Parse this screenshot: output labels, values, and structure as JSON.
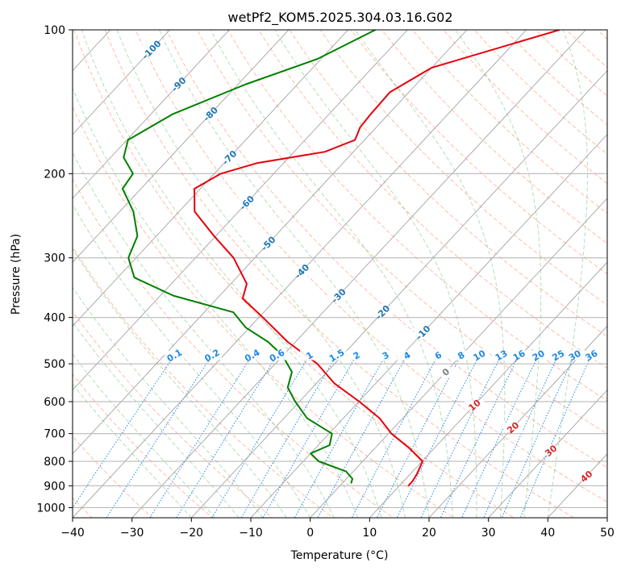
{
  "chart_data": {
    "type": "line",
    "subtype": "skew-t log-p",
    "title": "wetPf2_KOM5.2025.304.03.16.G02",
    "xlabel": "Temperature (°C)",
    "ylabel": "Pressure (hPa)",
    "xlim": [
      -40,
      50
    ],
    "ylim": [
      1050,
      100
    ],
    "y_scale": "log",
    "x_ticks": [
      -40,
      -30,
      -20,
      -10,
      0,
      10,
      20,
      30,
      40,
      50
    ],
    "x_tick_labels": [
      "−40",
      "−30",
      "−20",
      "−10",
      "0",
      "10",
      "20",
      "30",
      "40",
      "50"
    ],
    "y_ticks": [
      100,
      200,
      300,
      400,
      500,
      600,
      700,
      800,
      900,
      1000
    ],
    "y_tick_labels": [
      "100",
      "200",
      "300",
      "400",
      "500",
      "600",
      "700",
      "800",
      "900",
      "1000"
    ],
    "grid": true,
    "series": [
      {
        "role": "temperature",
        "color": "#e8000b",
        "points": [
          {
            "p": 100,
            "t": -34.4
          },
          {
            "p": 120,
            "t": -50.0
          },
          {
            "p": 135,
            "t": -53.2
          },
          {
            "p": 150,
            "t": -53.0
          },
          {
            "p": 160,
            "t": -52.7
          },
          {
            "p": 170,
            "t": -51.6
          },
          {
            "p": 180,
            "t": -54.8
          },
          {
            "p": 190,
            "t": -64.4
          },
          {
            "p": 200,
            "t": -68.9
          },
          {
            "p": 215,
            "t": -71.0
          },
          {
            "p": 240,
            "t": -67.4
          },
          {
            "p": 270,
            "t": -60.3
          },
          {
            "p": 300,
            "t": -53.6
          },
          {
            "p": 340,
            "t": -47.3
          },
          {
            "p": 365,
            "t": -45.7
          },
          {
            "p": 400,
            "t": -39.3
          },
          {
            "p": 450,
            "t": -31.3
          },
          {
            "p": 500,
            "t": -22.9
          },
          {
            "p": 550,
            "t": -16.9
          },
          {
            "p": 600,
            "t": -9.9
          },
          {
            "p": 650,
            "t": -3.9
          },
          {
            "p": 700,
            "t": 0.5
          },
          {
            "p": 750,
            "t": 5.7
          },
          {
            "p": 800,
            "t": 10.1
          },
          {
            "p": 850,
            "t": 11.1
          },
          {
            "p": 880,
            "t": 11.5
          },
          {
            "p": 900,
            "t": 11.5
          }
        ]
      },
      {
        "role": "dewpoint",
        "color": "#008000",
        "points": [
          {
            "p": 100,
            "t": -65.4
          },
          {
            "p": 115,
            "t": -70.6
          },
          {
            "p": 130,
            "t": -78.7
          },
          {
            "p": 150,
            "t": -86.3
          },
          {
            "p": 170,
            "t": -89.8
          },
          {
            "p": 185,
            "t": -87.8
          },
          {
            "p": 200,
            "t": -83.7
          },
          {
            "p": 215,
            "t": -83.1
          },
          {
            "p": 240,
            "t": -77.7
          },
          {
            "p": 270,
            "t": -73.2
          },
          {
            "p": 300,
            "t": -71.3
          },
          {
            "p": 330,
            "t": -67.2
          },
          {
            "p": 360,
            "t": -57.8
          },
          {
            "p": 390,
            "t": -45.1
          },
          {
            "p": 420,
            "t": -40.6
          },
          {
            "p": 450,
            "t": -34.6
          },
          {
            "p": 480,
            "t": -30.1
          },
          {
            "p": 520,
            "t": -25.9
          },
          {
            "p": 560,
            "t": -24.2
          },
          {
            "p": 600,
            "t": -20.7
          },
          {
            "p": 650,
            "t": -16.1
          },
          {
            "p": 700,
            "t": -9.5
          },
          {
            "p": 740,
            "t": -8.1
          },
          {
            "p": 770,
            "t": -10.0
          },
          {
            "p": 800,
            "t": -7.4
          },
          {
            "p": 840,
            "t": -1.2
          },
          {
            "p": 870,
            "t": 1.0
          },
          {
            "p": 890,
            "t": 1.5
          }
        ]
      }
    ],
    "isotherm_labels": [
      "-100",
      "-90",
      "-80",
      "-70",
      "-60",
      "-50",
      "-40",
      "-30",
      "-20",
      "-10"
    ],
    "mixing_ratio_labels": [
      "0.1",
      "0.2",
      "0.4",
      "0.6",
      "1",
      "1.5",
      "2",
      "3",
      "4",
      "6",
      "8",
      "10",
      "13",
      "16",
      "20",
      "25",
      "30",
      "36"
    ],
    "moist_adiabat_labels": [
      "0",
      "10",
      "20",
      "30",
      "40"
    ],
    "colors": {
      "temperature_line": "#e8000b",
      "dewpoint_line": "#008000",
      "isotherm_grid": "#999999",
      "isotherm_label": "#1f77b4",
      "dry_adiabat": "#ff6a3d",
      "moist_adiabat": "#2ca02c",
      "mixing_ratio": "#1e88e5",
      "moist_label": "#d62728"
    }
  }
}
